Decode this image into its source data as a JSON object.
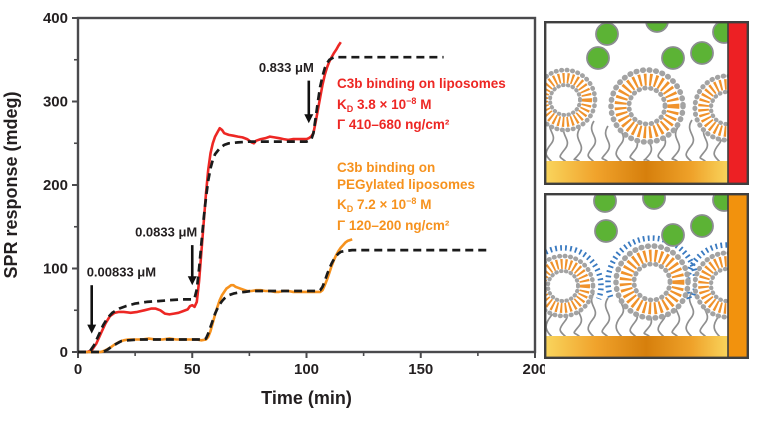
{
  "colors": {
    "red_series": "#ed2724",
    "orange_series": "#f6921e",
    "fit_dashed": "#1b1b1b",
    "axis": "#4a4a4d",
    "tick_label": "#231f20",
    "green_protein": "#5cb335",
    "gold_surface": "#e89a1d",
    "peg_corona": "#3a7ac0",
    "panel_bar_top": "#ed2024",
    "panel_bar_bottom": "#f2920d"
  },
  "legend": {
    "red": {
      "line1": "C3b binding on liposomes",
      "kd_base": "K",
      "kd_sub": "D",
      "kd_mid": " 3.8 × 10",
      "kd_exp": "−8",
      "kd_unit": " M",
      "gamma": "Γ 410–680 ng/cm²"
    },
    "orange": {
      "line1": "C3b binding on",
      "line2": "PEGylated liposomes",
      "kd_base": "K",
      "kd_sub": "D",
      "kd_mid": " 7.2 × 10",
      "kd_exp": "−8",
      "kd_unit": " M",
      "gamma": "Γ 120–200 ng/cm²"
    }
  },
  "chart_data": {
    "type": "line",
    "xlabel": "Time (min)",
    "ylabel": "SPR response (mdeg)",
    "xlim": [
      0,
      200
    ],
    "ylim": [
      0,
      400
    ],
    "x_ticks_major": [
      0,
      50,
      100,
      150,
      200
    ],
    "x_ticks_minor": [
      25,
      75,
      125,
      175
    ],
    "y_ticks_major": [
      0,
      100,
      200,
      300,
      400
    ],
    "y_ticks_minor": [
      50,
      150,
      250,
      350
    ],
    "grid": false,
    "annotations": [
      {
        "text": "0.00833 μM",
        "anchor": "start",
        "arrow_x": 6,
        "text_y": 95,
        "arrow_top": 80,
        "arrow_tip": 22
      },
      {
        "text": "0.0833 μM",
        "anchor": "end",
        "arrow_x": 50,
        "text_y": 143,
        "arrow_top": 128,
        "arrow_tip": 80
      },
      {
        "text": "0.833 μM",
        "anchor": "end",
        "arrow_x": 101,
        "text_y": 340,
        "arrow_top": 325,
        "arrow_tip": 274
      }
    ],
    "series": [
      {
        "id": "liposomes-measured",
        "name": "C3b binding on liposomes (measured)",
        "color": "#ed2724",
        "style": "solid",
        "points": [
          [
            0,
            0
          ],
          [
            4,
            0
          ],
          [
            6,
            2
          ],
          [
            8,
            10
          ],
          [
            10,
            22
          ],
          [
            12,
            34
          ],
          [
            14,
            43
          ],
          [
            16,
            47
          ],
          [
            18,
            48
          ],
          [
            20,
            48
          ],
          [
            23,
            47
          ],
          [
            26,
            48
          ],
          [
            29,
            50
          ],
          [
            32,
            52
          ],
          [
            34,
            52
          ],
          [
            36,
            50
          ],
          [
            38,
            46
          ],
          [
            40,
            45
          ],
          [
            42,
            46
          ],
          [
            44,
            47
          ],
          [
            46,
            49
          ],
          [
            48,
            51
          ],
          [
            49,
            55
          ],
          [
            50,
            56
          ],
          [
            51,
            54
          ],
          [
            52,
            60
          ],
          [
            53,
            85
          ],
          [
            54,
            120
          ],
          [
            55,
            155
          ],
          [
            56,
            190
          ],
          [
            57,
            218
          ],
          [
            58,
            238
          ],
          [
            59,
            250
          ],
          [
            60,
            258
          ],
          [
            61,
            263
          ],
          [
            62,
            268
          ],
          [
            63,
            266
          ],
          [
            64,
            262
          ],
          [
            66,
            260
          ],
          [
            68,
            259
          ],
          [
            70,
            258
          ],
          [
            72,
            257
          ],
          [
            74,
            255
          ],
          [
            76,
            251
          ],
          [
            77,
            250
          ],
          [
            78,
            253
          ],
          [
            80,
            255
          ],
          [
            82,
            256
          ],
          [
            84,
            258
          ],
          [
            86,
            257
          ],
          [
            88,
            256
          ],
          [
            90,
            255
          ],
          [
            92,
            254
          ],
          [
            94,
            255
          ],
          [
            96,
            255
          ],
          [
            98,
            255
          ],
          [
            100,
            255
          ],
          [
            101,
            256
          ],
          [
            102,
            258
          ],
          [
            103,
            262
          ],
          [
            104,
            275
          ],
          [
            105,
            290
          ],
          [
            106,
            305
          ],
          [
            107,
            320
          ],
          [
            108,
            332
          ],
          [
            109,
            341
          ],
          [
            110,
            348
          ],
          [
            111,
            353
          ],
          [
            112,
            358
          ],
          [
            113,
            362
          ],
          [
            114,
            367
          ],
          [
            115,
            371
          ]
        ]
      },
      {
        "id": "liposomes-fit",
        "name": "C3b binding on liposomes (fit)",
        "color": "#1b1b1b",
        "style": "dashed",
        "points": [
          [
            0,
            0
          ],
          [
            5,
            0
          ],
          [
            7,
            8
          ],
          [
            9,
            20
          ],
          [
            11,
            32
          ],
          [
            13,
            41
          ],
          [
            15,
            47
          ],
          [
            18,
            52
          ],
          [
            21,
            55
          ],
          [
            25,
            58
          ],
          [
            30,
            60
          ],
          [
            35,
            61
          ],
          [
            40,
            62
          ],
          [
            45,
            63
          ],
          [
            50,
            63
          ],
          [
            51,
            64
          ],
          [
            52,
            75
          ],
          [
            53,
            100
          ],
          [
            54,
            130
          ],
          [
            55,
            160
          ],
          [
            56,
            185
          ],
          [
            57,
            205
          ],
          [
            58,
            220
          ],
          [
            59,
            230
          ],
          [
            60,
            237
          ],
          [
            62,
            244
          ],
          [
            64,
            248
          ],
          [
            66,
            250
          ],
          [
            70,
            251
          ],
          [
            75,
            252
          ],
          [
            80,
            252
          ],
          [
            90,
            252
          ],
          [
            100,
            252
          ],
          [
            102,
            254
          ],
          [
            103,
            262
          ],
          [
            104,
            280
          ],
          [
            105,
            300
          ],
          [
            106,
            318
          ],
          [
            107,
            330
          ],
          [
            108,
            340
          ],
          [
            109,
            346
          ],
          [
            110,
            350
          ],
          [
            112,
            353
          ],
          [
            115,
            353
          ],
          [
            160,
            353
          ]
        ]
      },
      {
        "id": "pegylated-measured",
        "name": "C3b binding on PEGylated liposomes (measured)",
        "color": "#f6921e",
        "style": "solid",
        "points": [
          [
            0,
            0
          ],
          [
            10,
            0
          ],
          [
            12,
            2
          ],
          [
            14,
            5
          ],
          [
            16,
            9
          ],
          [
            18,
            12
          ],
          [
            20,
            14
          ],
          [
            22,
            15
          ],
          [
            25,
            15
          ],
          [
            28,
            15
          ],
          [
            31,
            16
          ],
          [
            34,
            15
          ],
          [
            37,
            15
          ],
          [
            40,
            16
          ],
          [
            43,
            15
          ],
          [
            46,
            15
          ],
          [
            49,
            15
          ],
          [
            52,
            15
          ],
          [
            54,
            14
          ],
          [
            56,
            15
          ],
          [
            57,
            18
          ],
          [
            58,
            25
          ],
          [
            59,
            35
          ],
          [
            60,
            45
          ],
          [
            61,
            54
          ],
          [
            62,
            62
          ],
          [
            63,
            68
          ],
          [
            64,
            72
          ],
          [
            65,
            76
          ],
          [
            66,
            78
          ],
          [
            67,
            80
          ],
          [
            68,
            80
          ],
          [
            69,
            78
          ],
          [
            70,
            77
          ],
          [
            72,
            75
          ],
          [
            74,
            73
          ],
          [
            76,
            73
          ],
          [
            78,
            74
          ],
          [
            80,
            74
          ],
          [
            82,
            73
          ],
          [
            84,
            73
          ],
          [
            86,
            72
          ],
          [
            88,
            72
          ],
          [
            90,
            73
          ],
          [
            92,
            73
          ],
          [
            94,
            72
          ],
          [
            96,
            72
          ],
          [
            98,
            72
          ],
          [
            100,
            72
          ],
          [
            102,
            72
          ],
          [
            104,
            72
          ],
          [
            106,
            72
          ],
          [
            107,
            74
          ],
          [
            108,
            80
          ],
          [
            109,
            87
          ],
          [
            110,
            95
          ],
          [
            111,
            103
          ],
          [
            112,
            110
          ],
          [
            113,
            116
          ],
          [
            114,
            121
          ],
          [
            115,
            125
          ],
          [
            116,
            128
          ],
          [
            117,
            131
          ],
          [
            118,
            133
          ],
          [
            119,
            134
          ],
          [
            120,
            135
          ]
        ]
      },
      {
        "id": "pegylated-fit",
        "name": "C3b binding on PEGylated liposomes (fit)",
        "color": "#1b1b1b",
        "style": "dashed",
        "points": [
          [
            0,
            0
          ],
          [
            11,
            0
          ],
          [
            13,
            3
          ],
          [
            15,
            7
          ],
          [
            17,
            10
          ],
          [
            19,
            13
          ],
          [
            22,
            14
          ],
          [
            26,
            15
          ],
          [
            30,
            15
          ],
          [
            40,
            15
          ],
          [
            50,
            15
          ],
          [
            55,
            15
          ],
          [
            56,
            16
          ],
          [
            57,
            22
          ],
          [
            58,
            30
          ],
          [
            59,
            38
          ],
          [
            60,
            46
          ],
          [
            61,
            52
          ],
          [
            62,
            57
          ],
          [
            63,
            61
          ],
          [
            64,
            64
          ],
          [
            66,
            68
          ],
          [
            68,
            70
          ],
          [
            70,
            71
          ],
          [
            73,
            72
          ],
          [
            76,
            73
          ],
          [
            80,
            73
          ],
          [
            90,
            73
          ],
          [
            100,
            73
          ],
          [
            104,
            73
          ],
          [
            106,
            74
          ],
          [
            107,
            78
          ],
          [
            108,
            85
          ],
          [
            109,
            93
          ],
          [
            110,
            100
          ],
          [
            111,
            106
          ],
          [
            112,
            111
          ],
          [
            113,
            115
          ],
          [
            114,
            118
          ],
          [
            115,
            120
          ],
          [
            117,
            121
          ],
          [
            120,
            122
          ],
          [
            180,
            122
          ]
        ]
      }
    ]
  }
}
